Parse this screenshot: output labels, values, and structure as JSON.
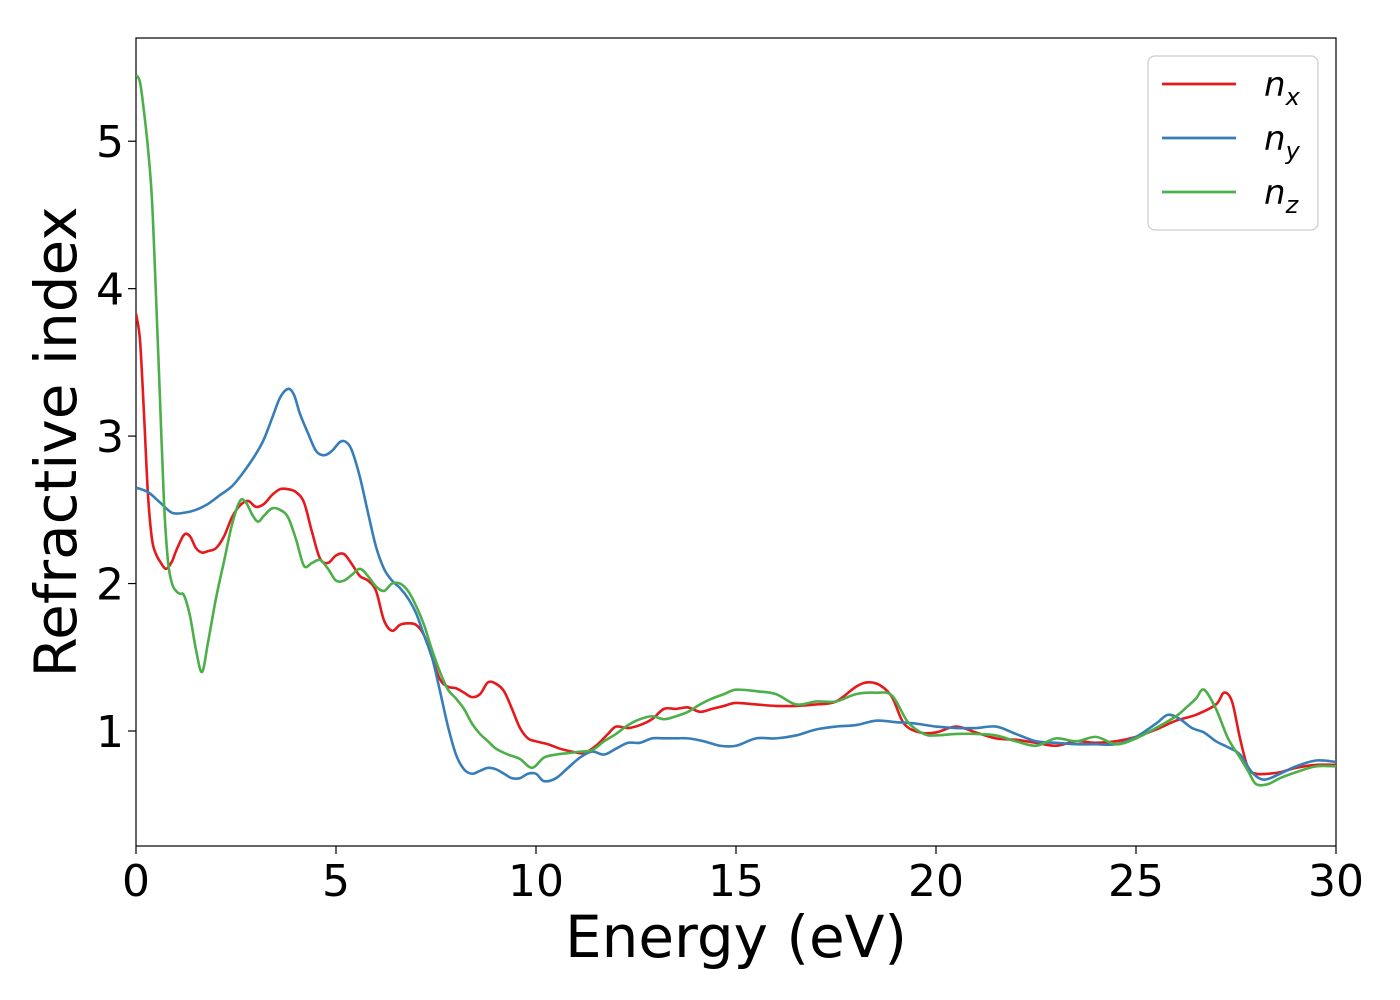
{
  "chart_data": {
    "type": "line",
    "title": "",
    "xlabel": "Energy (eV)",
    "ylabel": "Refractive index",
    "xlim": [
      0,
      30
    ],
    "ylim": [
      0.22,
      5.7
    ],
    "xticks": [
      0,
      5,
      10,
      15,
      20,
      25,
      30
    ],
    "yticks": [
      1,
      2,
      3,
      4,
      5
    ],
    "grid": false,
    "legend_position": "top-right",
    "series": [
      {
        "name": "n",
        "subscript": "x",
        "color": "#e41a1c",
        "x": [
          0,
          0.1,
          0.2,
          0.3,
          0.4,
          0.5,
          0.6,
          0.75,
          0.9,
          1.0,
          1.2,
          1.35,
          1.5,
          1.65,
          1.8,
          2.0,
          2.2,
          2.4,
          2.6,
          2.8,
          3.0,
          3.2,
          3.4,
          3.6,
          3.8,
          4.0,
          4.2,
          4.4,
          4.6,
          4.8,
          5.0,
          5.2,
          5.4,
          5.6,
          5.8,
          6.0,
          6.2,
          6.4,
          6.6,
          6.8,
          7.0,
          7.2,
          7.4,
          7.6,
          7.8,
          8.0,
          8.2,
          8.4,
          8.6,
          8.8,
          9.0,
          9.2,
          9.4,
          9.6,
          9.8,
          10.0,
          10.3,
          10.6,
          10.9,
          11.2,
          11.5,
          11.8,
          12.0,
          12.3,
          12.6,
          12.9,
          13.2,
          13.5,
          13.8,
          14.1,
          14.4,
          14.7,
          15.0,
          15.5,
          16.0,
          16.5,
          17.0,
          17.5,
          18.0,
          18.3,
          18.6,
          18.9,
          19.2,
          19.6,
          20.0,
          20.5,
          21.0,
          21.5,
          22.0,
          22.5,
          23.0,
          23.5,
          24.0,
          24.5,
          25.0,
          25.5,
          26.0,
          26.5,
          27.0,
          27.2,
          27.4,
          27.6,
          27.8,
          28.0,
          28.3,
          28.6,
          29.0,
          29.5,
          30.0
        ],
        "y": [
          3.83,
          3.65,
          3.15,
          2.6,
          2.3,
          2.2,
          2.15,
          2.1,
          2.15,
          2.22,
          2.33,
          2.32,
          2.24,
          2.21,
          2.22,
          2.24,
          2.32,
          2.45,
          2.53,
          2.56,
          2.52,
          2.54,
          2.6,
          2.64,
          2.64,
          2.62,
          2.55,
          2.35,
          2.17,
          2.14,
          2.19,
          2.2,
          2.13,
          2.05,
          2.02,
          1.95,
          1.75,
          1.68,
          1.72,
          1.73,
          1.72,
          1.65,
          1.5,
          1.35,
          1.3,
          1.29,
          1.26,
          1.23,
          1.25,
          1.33,
          1.32,
          1.27,
          1.15,
          1.02,
          0.95,
          0.93,
          0.91,
          0.88,
          0.86,
          0.85,
          0.9,
          0.98,
          1.03,
          1.02,
          1.04,
          1.08,
          1.15,
          1.15,
          1.16,
          1.13,
          1.15,
          1.17,
          1.19,
          1.18,
          1.17,
          1.17,
          1.18,
          1.2,
          1.3,
          1.33,
          1.31,
          1.23,
          1.05,
          0.99,
          0.99,
          1.03,
          0.99,
          0.95,
          0.94,
          0.92,
          0.9,
          0.93,
          0.92,
          0.93,
          0.96,
          1.01,
          1.07,
          1.11,
          1.18,
          1.26,
          1.2,
          0.95,
          0.75,
          0.71,
          0.71,
          0.72,
          0.75,
          0.77,
          0.77
        ]
      },
      {
        "name": "n",
        "subscript": "y",
        "color": "#377eb8",
        "x": [
          0,
          0.3,
          0.6,
          0.9,
          1.2,
          1.5,
          1.8,
          2.1,
          2.4,
          2.7,
          3.0,
          3.2,
          3.4,
          3.6,
          3.8,
          3.95,
          4.1,
          4.3,
          4.5,
          4.7,
          4.9,
          5.1,
          5.25,
          5.4,
          5.6,
          5.8,
          6.0,
          6.2,
          6.4,
          6.6,
          6.8,
          7.0,
          7.2,
          7.4,
          7.6,
          7.8,
          8.0,
          8.2,
          8.4,
          8.6,
          8.8,
          9.0,
          9.2,
          9.4,
          9.6,
          9.8,
          10.0,
          10.2,
          10.5,
          10.8,
          11.1,
          11.4,
          11.7,
          12.0,
          12.3,
          12.6,
          12.9,
          13.2,
          13.5,
          13.8,
          14.2,
          14.6,
          15.0,
          15.5,
          16.0,
          16.5,
          17.0,
          17.5,
          18.0,
          18.5,
          19.0,
          19.5,
          20.0,
          20.5,
          21.0,
          21.5,
          22.0,
          22.5,
          23.0,
          23.5,
          24.0,
          24.5,
          25.0,
          25.5,
          25.8,
          26.1,
          26.4,
          26.7,
          27.0,
          27.3,
          27.6,
          27.9,
          28.2,
          28.6,
          29.0,
          29.5,
          30.0
        ],
        "y": [
          2.65,
          2.62,
          2.55,
          2.48,
          2.48,
          2.5,
          2.54,
          2.6,
          2.66,
          2.76,
          2.88,
          2.98,
          3.12,
          3.26,
          3.32,
          3.28,
          3.15,
          3.02,
          2.9,
          2.87,
          2.9,
          2.96,
          2.96,
          2.9,
          2.72,
          2.48,
          2.25,
          2.1,
          2.02,
          1.97,
          1.9,
          1.8,
          1.65,
          1.5,
          1.27,
          1.03,
          0.84,
          0.74,
          0.71,
          0.73,
          0.75,
          0.74,
          0.71,
          0.68,
          0.68,
          0.71,
          0.71,
          0.66,
          0.68,
          0.75,
          0.82,
          0.86,
          0.84,
          0.88,
          0.92,
          0.92,
          0.95,
          0.95,
          0.95,
          0.95,
          0.93,
          0.9,
          0.9,
          0.95,
          0.95,
          0.97,
          1.01,
          1.03,
          1.04,
          1.07,
          1.06,
          1.05,
          1.03,
          1.02,
          1.02,
          1.03,
          0.98,
          0.93,
          0.92,
          0.91,
          0.91,
          0.91,
          0.96,
          1.05,
          1.11,
          1.08,
          1.02,
          0.99,
          0.93,
          0.89,
          0.84,
          0.72,
          0.67,
          0.71,
          0.76,
          0.8,
          0.79
        ]
      },
      {
        "name": "n",
        "subscript": "z",
        "color": "#4daf4a",
        "x": [
          0,
          0.1,
          0.2,
          0.3,
          0.4,
          0.5,
          0.6,
          0.7,
          0.8,
          0.9,
          1.0,
          1.1,
          1.2,
          1.35,
          1.5,
          1.65,
          1.8,
          2.0,
          2.2,
          2.4,
          2.6,
          2.75,
          2.9,
          3.05,
          3.2,
          3.4,
          3.6,
          3.8,
          4.0,
          4.2,
          4.4,
          4.6,
          4.8,
          5.0,
          5.2,
          5.4,
          5.6,
          5.8,
          6.0,
          6.2,
          6.4,
          6.6,
          6.8,
          7.0,
          7.2,
          7.4,
          7.6,
          7.8,
          8.0,
          8.2,
          8.4,
          8.6,
          8.8,
          9.0,
          9.3,
          9.6,
          9.9,
          10.2,
          10.5,
          10.8,
          11.1,
          11.4,
          11.7,
          12.0,
          12.3,
          12.6,
          12.9,
          13.2,
          13.5,
          13.8,
          14.1,
          14.4,
          14.7,
          15.0,
          15.5,
          16.0,
          16.5,
          17.0,
          17.5,
          18.0,
          18.5,
          18.9,
          19.3,
          19.7,
          20.0,
          20.5,
          21.0,
          21.5,
          22.0,
          22.5,
          23.0,
          23.5,
          24.0,
          24.5,
          25.0,
          25.5,
          26.0,
          26.3,
          26.5,
          26.7,
          27.0,
          27.3,
          27.6,
          27.8,
          28.0,
          28.3,
          28.6,
          29.0,
          29.5,
          30.0
        ],
        "y": [
          5.45,
          5.4,
          5.2,
          4.95,
          4.6,
          3.95,
          3.25,
          2.55,
          2.15,
          2.0,
          1.95,
          1.93,
          1.92,
          1.78,
          1.55,
          1.4,
          1.6,
          1.9,
          2.15,
          2.4,
          2.56,
          2.55,
          2.47,
          2.42,
          2.46,
          2.51,
          2.5,
          2.45,
          2.3,
          2.12,
          2.14,
          2.16,
          2.1,
          2.02,
          2.02,
          2.06,
          2.1,
          2.05,
          1.98,
          1.95,
          2.0,
          2.0,
          1.95,
          1.85,
          1.72,
          1.55,
          1.4,
          1.28,
          1.22,
          1.15,
          1.05,
          0.98,
          0.93,
          0.88,
          0.84,
          0.81,
          0.75,
          0.82,
          0.84,
          0.85,
          0.86,
          0.87,
          0.93,
          0.98,
          1.04,
          1.08,
          1.1,
          1.08,
          1.1,
          1.13,
          1.18,
          1.22,
          1.25,
          1.28,
          1.27,
          1.25,
          1.18,
          1.2,
          1.2,
          1.25,
          1.26,
          1.24,
          1.06,
          0.98,
          0.97,
          0.98,
          0.98,
          0.97,
          0.93,
          0.9,
          0.95,
          0.93,
          0.96,
          0.91,
          0.95,
          1.02,
          1.1,
          1.17,
          1.22,
          1.28,
          1.15,
          0.95,
          0.82,
          0.73,
          0.64,
          0.64,
          0.68,
          0.72,
          0.76,
          0.76
        ]
      }
    ]
  }
}
